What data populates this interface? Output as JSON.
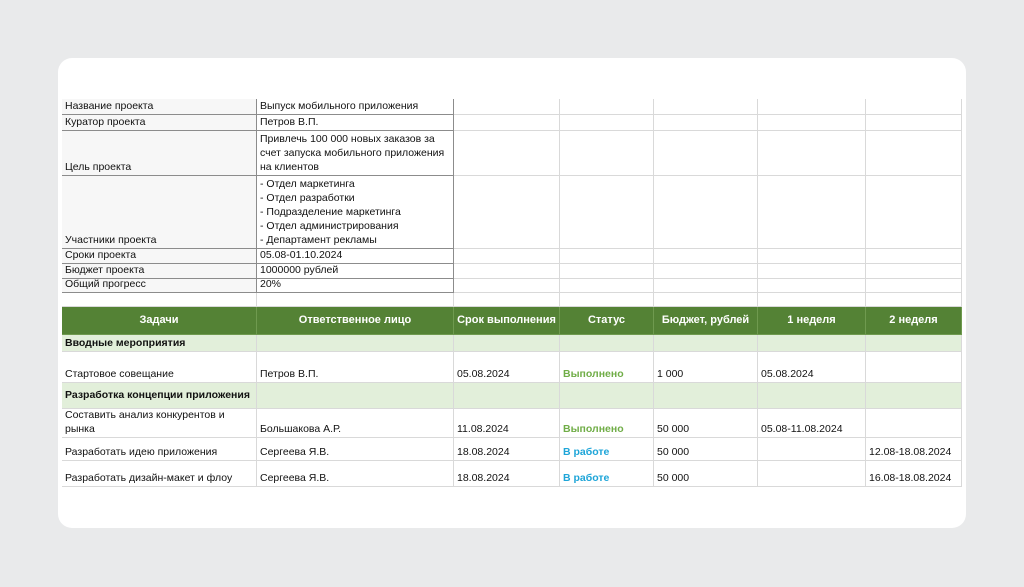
{
  "project_info": [
    {
      "label": "Название проекта",
      "value": "Выпуск мобильного приложения"
    },
    {
      "label": "Куратор проекта",
      "value": "Петров В.П."
    },
    {
      "label": "Цель проекта",
      "value": "Привлечь 100 000 новых заказов  за счет запуска мобильного приложения на клиентов"
    },
    {
      "label": "Участники проекта",
      "value": [
        "- Отдел маркетинга",
        "- Отдел разработки",
        "- Подразделение маркетинга",
        "- Отдел администрирования",
        "- Департамент рекламы"
      ]
    },
    {
      "label": "Сроки проекта",
      "value": "05.08-01.10.2024"
    },
    {
      "label": "Бюджет проекта",
      "value": "1000000 рублей"
    },
    {
      "label": "Общий прогресс",
      "value": "20%"
    }
  ],
  "table": {
    "headers": [
      "Задачи",
      "Ответственное лицо",
      "Срок выполнения",
      "Статус",
      "Бюджет, рублей",
      "1 неделя",
      "2 неделя"
    ],
    "rows": [
      {
        "section": "Вводные мероприятия"
      },
      {
        "task": "Стартовое совещание",
        "owner": "Петров В.П.",
        "deadline": "05.08.2024",
        "status": {
          "text": "Выполнено",
          "color": "#70ad47"
        },
        "budget": "1 000",
        "week1": "05.08.2024"
      },
      {
        "section": "Разработка концепции приложения"
      },
      {
        "task": "Составить анализ конкурентов и рынка",
        "owner": "Большакова А.Р.",
        "deadline": "11.08.2024",
        "status": {
          "text": "Выполнено",
          "color": "#70ad47"
        },
        "budget": "50 000",
        "week1": "05.08-11.08.2024"
      },
      {
        "task": "Разработать идею приложения",
        "owner": "Сергеева Я.В.",
        "deadline": "18.08.2024",
        "status": {
          "text": "В работе",
          "color": "#1ea5d8"
        },
        "budget": "50 000",
        "week2": "12.08-18.08.2024"
      },
      {
        "task": "Разработать дизайн-макет и флоу",
        "owner": "Сергеева Я.В.",
        "deadline": "18.08.2024",
        "status": {
          "text": "В работе",
          "color": "#1ea5d8"
        },
        "budget": "50 000",
        "week2": "16.08-18.08.2024"
      }
    ]
  }
}
